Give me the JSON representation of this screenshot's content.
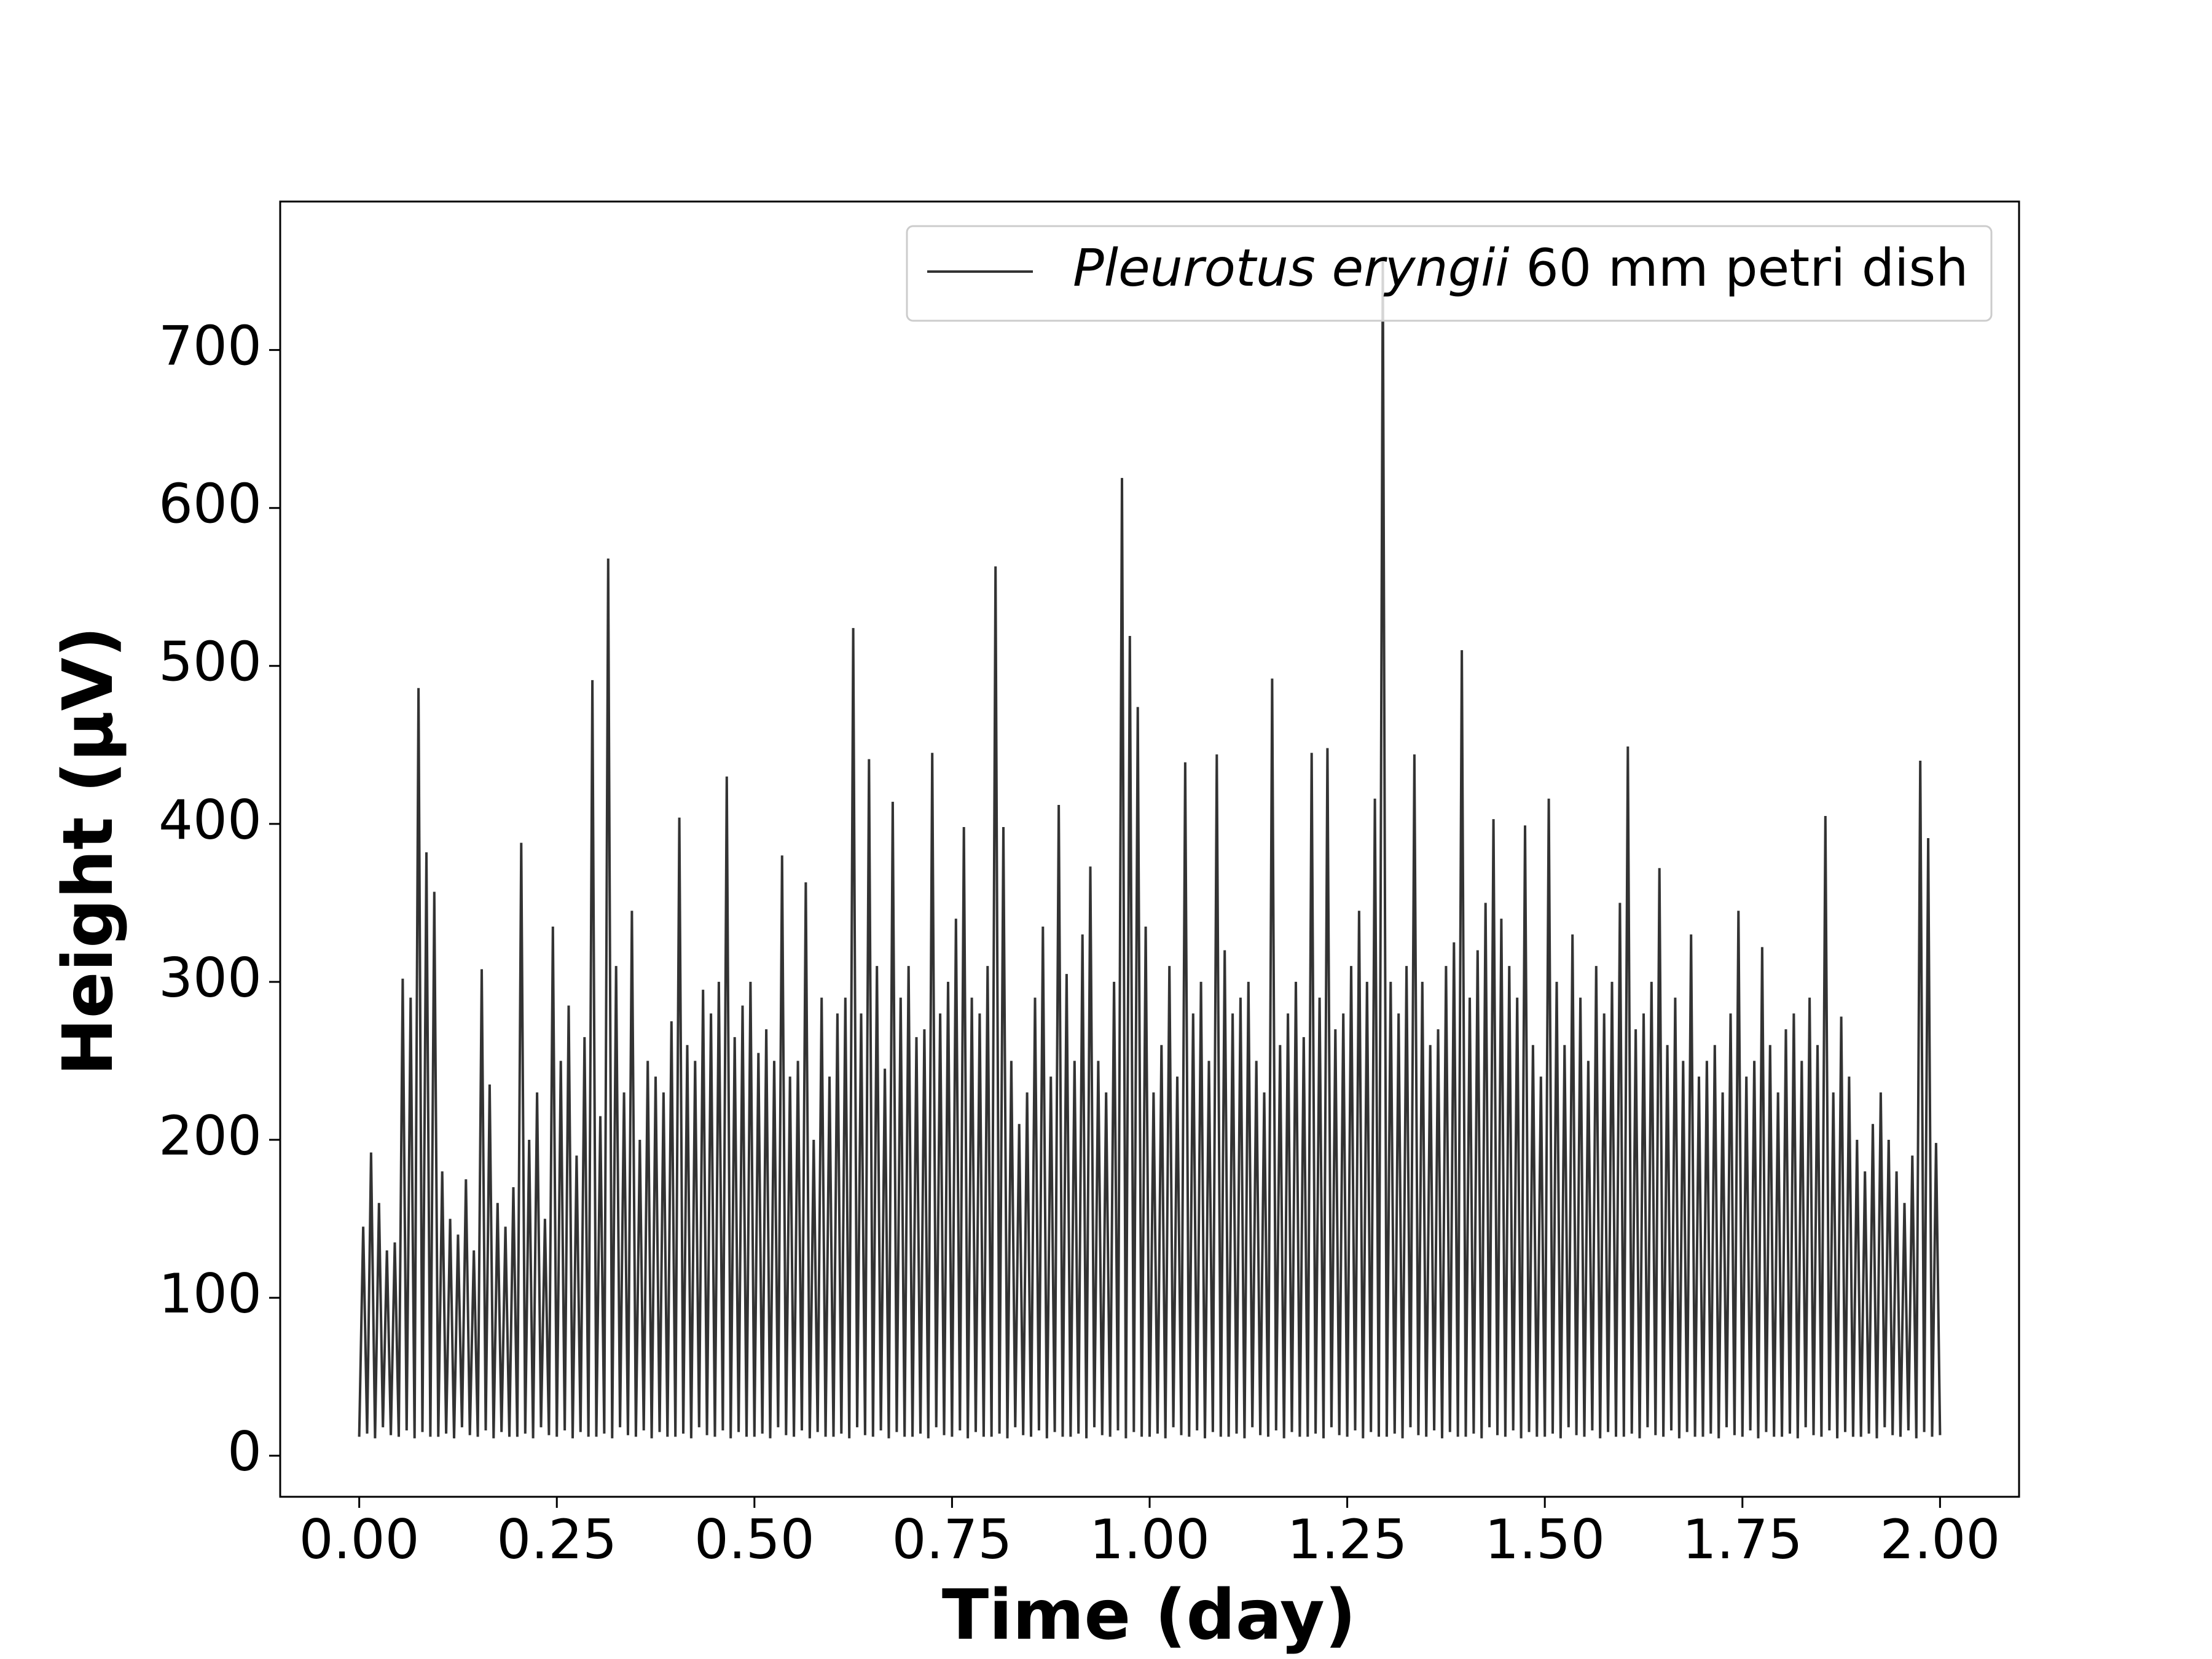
{
  "chart_data": {
    "type": "line",
    "xlabel": "Time (day)",
    "ylabel": "Height (μV)",
    "xlim": [
      -0.1,
      2.1
    ],
    "ylim": [
      -26,
      794
    ],
    "xticks": [
      {
        "value": 0,
        "label": "0.00"
      },
      {
        "value": 0.25,
        "label": "0.25"
      },
      {
        "value": 0.5,
        "label": "0.50"
      },
      {
        "value": 0.75,
        "label": "0.75"
      },
      {
        "value": 1,
        "label": "1.00"
      },
      {
        "value": 1.25,
        "label": "1.25"
      },
      {
        "value": 1.5,
        "label": "1.50"
      },
      {
        "value": 1.75,
        "label": "1.75"
      },
      {
        "value": 2,
        "label": "2.00"
      }
    ],
    "yticks": [
      0,
      100,
      200,
      300,
      400,
      500,
      600,
      700
    ],
    "legend": "upper right",
    "x": [
      0,
      0.005,
      0.01,
      0.015,
      0.02,
      0.025,
      0.03,
      0.035,
      0.04,
      0.045,
      0.05,
      0.055,
      0.06,
      0.065,
      0.07,
      0.075,
      0.08,
      0.085,
      0.09,
      0.095,
      0.1,
      0.105,
      0.11,
      0.115,
      0.12,
      0.125,
      0.13,
      0.135,
      0.14,
      0.145,
      0.15,
      0.155,
      0.16,
      0.165,
      0.17,
      0.175,
      0.18,
      0.185,
      0.19,
      0.195,
      0.2,
      0.205,
      0.21,
      0.215,
      0.22,
      0.225,
      0.23,
      0.235,
      0.24,
      0.245,
      0.25,
      0.255,
      0.26,
      0.265,
      0.27,
      0.275,
      0.28,
      0.285,
      0.29,
      0.295,
      0.3,
      0.305,
      0.31,
      0.315,
      0.32,
      0.325,
      0.33,
      0.335,
      0.34,
      0.345,
      0.35,
      0.355,
      0.36,
      0.365,
      0.37,
      0.375,
      0.38,
      0.385,
      0.39,
      0.395,
      0.4,
      0.405,
      0.41,
      0.415,
      0.42,
      0.425,
      0.43,
      0.435,
      0.44,
      0.445,
      0.45,
      0.455,
      0.46,
      0.465,
      0.47,
      0.475,
      0.48,
      0.485,
      0.49,
      0.495,
      0.5,
      0.505,
      0.51,
      0.515,
      0.52,
      0.525,
      0.53,
      0.535,
      0.54,
      0.545,
      0.55,
      0.555,
      0.56,
      0.565,
      0.57,
      0.575,
      0.58,
      0.585,
      0.59,
      0.595,
      0.6,
      0.605,
      0.61,
      0.615,
      0.62,
      0.625,
      0.63,
      0.635,
      0.64,
      0.645,
      0.65,
      0.655,
      0.66,
      0.665,
      0.67,
      0.675,
      0.68,
      0.685,
      0.69,
      0.695,
      0.7,
      0.705,
      0.71,
      0.715,
      0.72,
      0.725,
      0.73,
      0.735,
      0.74,
      0.745,
      0.75,
      0.755,
      0.76,
      0.765,
      0.77,
      0.775,
      0.78,
      0.785,
      0.79,
      0.795,
      0.8,
      0.805,
      0.81,
      0.815,
      0.82,
      0.825,
      0.83,
      0.835,
      0.84,
      0.845,
      0.85,
      0.855,
      0.86,
      0.865,
      0.87,
      0.875,
      0.88,
      0.885,
      0.89,
      0.895,
      0.9,
      0.905,
      0.91,
      0.915,
      0.92,
      0.925,
      0.93,
      0.935,
      0.94,
      0.945,
      0.95,
      0.955,
      0.96,
      0.965,
      0.97,
      0.975,
      0.98,
      0.985,
      0.99,
      0.995,
      1,
      1.005,
      1.01,
      1.015,
      1.02,
      1.025,
      1.03,
      1.035,
      1.04,
      1.045,
      1.05,
      1.055,
      1.06,
      1.065,
      1.07,
      1.075,
      1.08,
      1.085,
      1.09,
      1.095,
      1.1,
      1.105,
      1.11,
      1.115,
      1.12,
      1.125,
      1.13,
      1.135,
      1.14,
      1.145,
      1.15,
      1.155,
      1.16,
      1.165,
      1.17,
      1.175,
      1.18,
      1.185,
      1.19,
      1.195,
      1.2,
      1.205,
      1.21,
      1.215,
      1.22,
      1.225,
      1.23,
      1.235,
      1.24,
      1.245,
      1.25,
      1.255,
      1.26,
      1.265,
      1.27,
      1.275,
      1.28,
      1.285,
      1.29,
      1.295,
      1.3,
      1.305,
      1.31,
      1.315,
      1.32,
      1.325,
      1.33,
      1.335,
      1.34,
      1.345,
      1.35,
      1.355,
      1.36,
      1.365,
      1.37,
      1.375,
      1.38,
      1.385,
      1.39,
      1.395,
      1.4,
      1.405,
      1.41,
      1.415,
      1.42,
      1.425,
      1.43,
      1.435,
      1.44,
      1.445,
      1.45,
      1.455,
      1.46,
      1.465,
      1.47,
      1.475,
      1.48,
      1.485,
      1.49,
      1.495,
      1.5,
      1.505,
      1.51,
      1.515,
      1.52,
      1.525,
      1.53,
      1.535,
      1.54,
      1.545,
      1.55,
      1.555,
      1.56,
      1.565,
      1.57,
      1.575,
      1.58,
      1.585,
      1.59,
      1.595,
      1.6,
      1.605,
      1.61,
      1.615,
      1.62,
      1.625,
      1.63,
      1.635,
      1.64,
      1.645,
      1.65,
      1.655,
      1.66,
      1.665,
      1.67,
      1.675,
      1.68,
      1.685,
      1.69,
      1.695,
      1.7,
      1.705,
      1.71,
      1.715,
      1.72,
      1.725,
      1.73,
      1.735,
      1.74,
      1.745,
      1.75,
      1.755,
      1.76,
      1.765,
      1.77,
      1.775,
      1.78,
      1.785,
      1.79,
      1.795,
      1.8,
      1.805,
      1.81,
      1.815,
      1.82,
      1.825,
      1.83,
      1.835,
      1.84,
      1.845,
      1.85,
      1.855,
      1.86,
      1.865,
      1.87,
      1.875,
      1.88,
      1.885,
      1.89,
      1.895,
      1.9,
      1.905,
      1.91,
      1.915,
      1.92,
      1.925,
      1.93,
      1.935,
      1.94,
      1.945,
      1.95,
      1.955,
      1.96,
      1.965,
      1.97,
      1.975,
      1.98,
      1.985,
      1.99,
      1.995,
      2
    ],
    "series": [
      {
        "name": "Pleurotus eryngii 60 mm petri dish",
        "color": "#333333",
        "values": [
          12,
          145,
          14,
          192,
          11,
          160,
          18,
          130,
          13,
          135,
          12,
          302,
          16,
          290,
          11,
          486,
          15,
          382,
          12,
          357,
          12,
          180,
          14,
          150,
          11,
          140,
          18,
          175,
          13,
          130,
          12,
          308,
          16,
          235,
          11,
          160,
          15,
          145,
          12,
          170,
          12,
          388,
          14,
          200,
          11,
          230,
          18,
          150,
          13,
          335,
          12,
          250,
          16,
          285,
          11,
          190,
          15,
          265,
          12,
          491,
          12,
          215,
          14,
          568,
          11,
          310,
          18,
          230,
          13,
          345,
          12,
          200,
          16,
          250,
          11,
          240,
          15,
          230,
          12,
          275,
          12,
          404,
          14,
          260,
          11,
          250,
          18,
          295,
          13,
          280,
          12,
          300,
          16,
          430,
          11,
          265,
          15,
          285,
          12,
          300,
          12,
          255,
          14,
          270,
          11,
          250,
          18,
          380,
          13,
          240,
          12,
          250,
          16,
          363,
          11,
          200,
          15,
          290,
          12,
          240,
          12,
          280,
          14,
          290,
          11,
          524,
          18,
          280,
          13,
          441,
          12,
          310,
          16,
          245,
          11,
          414,
          15,
          290,
          12,
          310,
          12,
          265,
          14,
          270,
          11,
          445,
          18,
          280,
          13,
          300,
          12,
          340,
          16,
          398,
          11,
          290,
          15,
          280,
          12,
          310,
          12,
          563,
          14,
          398,
          11,
          250,
          18,
          210,
          13,
          230,
          12,
          290,
          16,
          335,
          11,
          240,
          15,
          412,
          12,
          305,
          12,
          250,
          14,
          330,
          11,
          373,
          18,
          250,
          13,
          230,
          12,
          300,
          16,
          619,
          11,
          519,
          15,
          474,
          12,
          335,
          12,
          230,
          14,
          260,
          11,
          310,
          18,
          240,
          13,
          439,
          12,
          280,
          16,
          300,
          11,
          250,
          15,
          444,
          12,
          320,
          12,
          280,
          14,
          290,
          11,
          300,
          18,
          250,
          13,
          230,
          12,
          492,
          16,
          260,
          11,
          280,
          15,
          300,
          12,
          265,
          12,
          445,
          14,
          290,
          11,
          448,
          18,
          270,
          13,
          280,
          12,
          310,
          16,
          345,
          11,
          300,
          15,
          416,
          12,
          756,
          12,
          300,
          14,
          280,
          11,
          310,
          18,
          444,
          13,
          300,
          12,
          260,
          16,
          270,
          11,
          310,
          15,
          325,
          12,
          510,
          12,
          290,
          14,
          320,
          11,
          350,
          18,
          403,
          13,
          340,
          12,
          310,
          16,
          290,
          11,
          399,
          15,
          260,
          12,
          240,
          12,
          416,
          14,
          300,
          11,
          260,
          18,
          330,
          13,
          290,
          12,
          250,
          16,
          310,
          11,
          280,
          15,
          300,
          12,
          350,
          12,
          449,
          14,
          270,
          11,
          280,
          18,
          300,
          13,
          372,
          12,
          260,
          16,
          290,
          11,
          250,
          15,
          330,
          12,
          240,
          12,
          250,
          14,
          260,
          11,
          230,
          18,
          280,
          13,
          345,
          12,
          240,
          16,
          250,
          11,
          322,
          15,
          260,
          12,
          230,
          12,
          270,
          14,
          280,
          11,
          250,
          18,
          290,
          13,
          260,
          12,
          405,
          16,
          230,
          11,
          278,
          15,
          240,
          12,
          200,
          12,
          180,
          14,
          210,
          11,
          230,
          18,
          200,
          13,
          180,
          12,
          160,
          16,
          190,
          11,
          440,
          15,
          391,
          12,
          198,
          13
        ]
      }
    ]
  }
}
